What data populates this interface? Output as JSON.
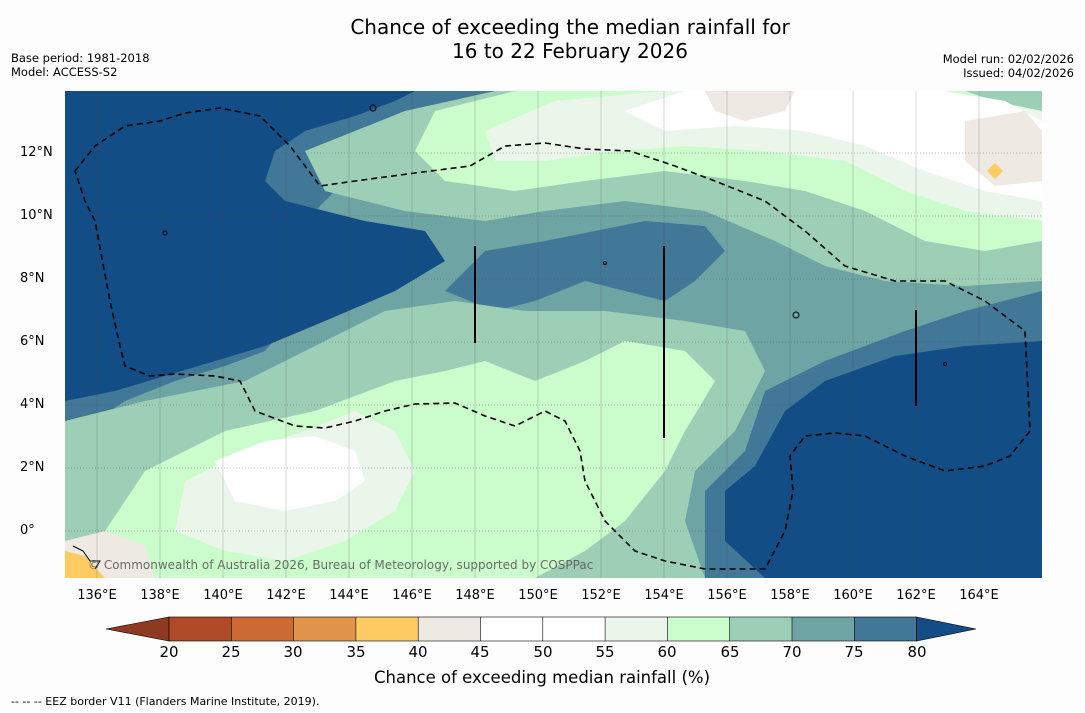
{
  "title": {
    "line1": "Chance of exceeding the median rainfall for",
    "line2": "16 to 22 February 2026"
  },
  "meta": {
    "base_period": "Base period: 1981-2018",
    "model": "Model: ACCESS-S2",
    "model_run": "Model run: 02/02/2026",
    "issued": "Issued: 04/02/2026"
  },
  "map": {
    "lat_labels": [
      "12°N",
      "10°N",
      "8°N",
      "6°N",
      "4°N",
      "2°N",
      "0°"
    ],
    "lon_labels": [
      "136°E",
      "138°E",
      "140°E",
      "142°E",
      "144°E",
      "146°E",
      "148°E",
      "150°E",
      "152°E",
      "154°E",
      "156°E",
      "158°E",
      "160°E",
      "162°E",
      "164°E"
    ],
    "copyright": "© Commonwealth of Australia 2026, Bureau of Meteorology, supported by COSPPac"
  },
  "colorbar": {
    "title": "Chance of exceeding median rainfall (%)",
    "ticks": [
      "20",
      "25",
      "30",
      "35",
      "40",
      "45",
      "50",
      "55",
      "60",
      "65",
      "70",
      "75",
      "80"
    ],
    "colors": {
      "below_20": "#8e3a21",
      "c20_25": "#b04a28",
      "c25_30": "#cd6a34",
      "c30_35": "#e0954a",
      "c35_40": "#fecb63",
      "c40_45": "#efe9e4",
      "c45_50": "#ffffff",
      "c50_55": "#ffffff",
      "c55_60": "#ebf6ea",
      "c60_65": "#cbfccb",
      "c65_70": "#9dcfb7",
      "c70_75": "#6fa4a5",
      "c75_80": "#417898",
      "above_80": "#134d85"
    }
  },
  "footer": {
    "legend": "--  --  -- EEZ border V11 (Flanders Marine Institute, 2019)."
  }
}
